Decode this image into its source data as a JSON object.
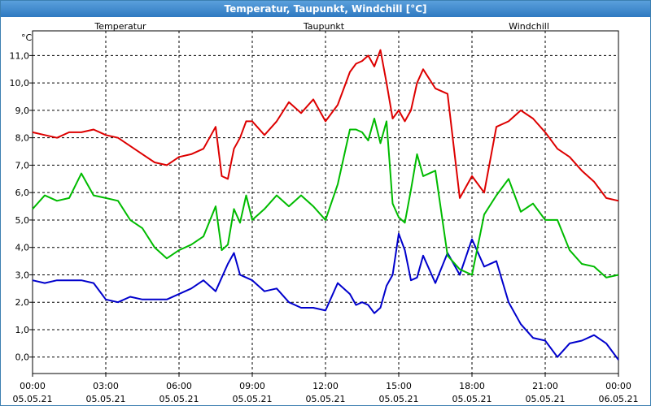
{
  "window": {
    "title": "Temperatur, Taupunkt, Windchill [°C]"
  },
  "chart_data": {
    "type": "line",
    "title": "Temperatur, Taupunkt, Windchill [°C]",
    "ylabel": "°C",
    "ylim": [
      -0.6,
      11.9
    ],
    "xlim": [
      0,
      24
    ],
    "grid": true,
    "legend": "top",
    "y_ticks": [
      "0,0",
      "1,0",
      "2,0",
      "3,0",
      "4,0",
      "5,0",
      "6,0",
      "7,0",
      "8,0",
      "9,0",
      "10,0",
      "11,0"
    ],
    "x_ticks": [
      {
        "time": "00:00",
        "date": "05.05.21"
      },
      {
        "time": "03:00",
        "date": "05.05.21"
      },
      {
        "time": "06:00",
        "date": "05.05.21"
      },
      {
        "time": "09:00",
        "date": "05.05.21"
      },
      {
        "time": "12:00",
        "date": "05.05.21"
      },
      {
        "time": "15:00",
        "date": "05.05.21"
      },
      {
        "time": "18:00",
        "date": "05.05.21"
      },
      {
        "time": "21:00",
        "date": "05.05.21"
      },
      {
        "time": "00:00",
        "date": "06.05.21"
      }
    ],
    "x_hours": [
      0,
      0.5,
      1,
      1.5,
      2,
      2.5,
      3,
      3.5,
      4,
      4.5,
      5,
      5.5,
      6,
      6.5,
      7,
      7.5,
      7.75,
      8,
      8.25,
      8.5,
      8.75,
      9,
      9.5,
      10,
      10.5,
      11,
      11.5,
      12,
      12.5,
      13,
      13.25,
      13.5,
      13.75,
      14,
      14.25,
      14.5,
      14.75,
      15,
      15.25,
      15.5,
      15.75,
      16,
      16.5,
      17,
      17.5,
      18,
      18.5,
      19,
      19.5,
      20,
      20.5,
      21,
      21.5,
      22,
      22.5,
      23,
      23.5,
      24
    ],
    "series": [
      {
        "name": "Temperatur",
        "color": "#dd0000",
        "values": [
          8.2,
          8.1,
          8.0,
          8.2,
          8.2,
          8.3,
          8.1,
          8.0,
          7.7,
          7.4,
          7.1,
          7.0,
          7.3,
          7.4,
          7.6,
          8.4,
          6.6,
          6.5,
          7.6,
          8.0,
          8.6,
          8.6,
          8.1,
          8.6,
          9.3,
          8.9,
          9.4,
          8.6,
          9.2,
          10.4,
          10.7,
          10.8,
          11.0,
          10.6,
          11.2,
          10.0,
          8.7,
          9.0,
          8.6,
          9.0,
          10.0,
          10.5,
          9.8,
          9.6,
          5.8,
          6.6,
          6.0,
          8.4,
          8.6,
          9.0,
          8.7,
          8.2,
          7.6,
          7.3,
          6.8,
          6.4,
          5.8,
          5.7
        ]
      },
      {
        "name": "Taupunkt",
        "color": "#0000cc",
        "values": [
          2.8,
          2.7,
          2.8,
          2.8,
          2.8,
          2.7,
          2.1,
          2.0,
          2.2,
          2.1,
          2.1,
          2.1,
          2.3,
          2.5,
          2.8,
          2.4,
          2.9,
          3.4,
          3.8,
          3.0,
          2.9,
          2.8,
          2.4,
          2.5,
          2.0,
          1.8,
          1.8,
          1.7,
          2.7,
          2.3,
          1.9,
          2.0,
          1.9,
          1.6,
          1.8,
          2.6,
          3.0,
          4.5,
          3.9,
          2.8,
          2.9,
          3.7,
          2.7,
          3.8,
          3.0,
          4.3,
          3.3,
          3.5,
          2.0,
          1.2,
          0.7,
          0.6,
          0.0,
          0.5,
          0.6,
          0.8,
          0.5,
          -0.1
        ]
      },
      {
        "name": "Windchill",
        "color": "#00bb00",
        "values": [
          5.4,
          5.9,
          5.7,
          5.8,
          6.7,
          5.9,
          5.8,
          5.7,
          5.0,
          4.7,
          4.0,
          3.6,
          3.9,
          4.1,
          4.4,
          5.5,
          3.9,
          4.1,
          5.4,
          4.9,
          5.9,
          5.0,
          5.4,
          5.9,
          5.5,
          5.9,
          5.5,
          5.0,
          6.3,
          8.3,
          8.3,
          8.2,
          7.9,
          8.7,
          7.8,
          8.6,
          5.6,
          5.1,
          4.9,
          6.1,
          7.4,
          6.6,
          6.8,
          3.7,
          3.2,
          3.0,
          5.2,
          5.9,
          6.5,
          5.3,
          5.6,
          5.0,
          5.0,
          3.9,
          3.4,
          3.3,
          2.9,
          3.0
        ]
      }
    ]
  }
}
